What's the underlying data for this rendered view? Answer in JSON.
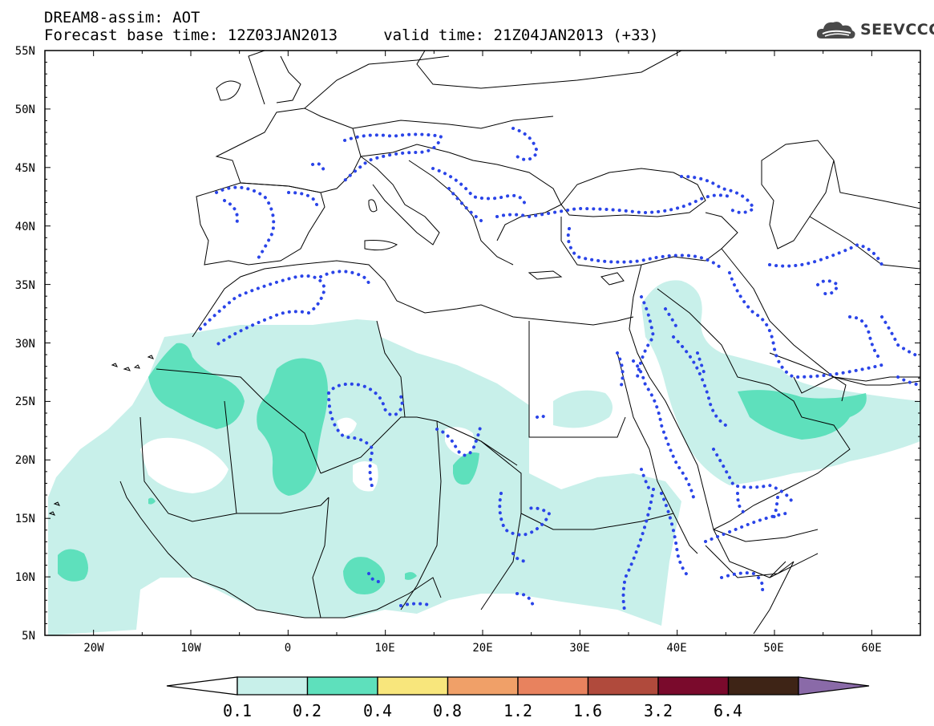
{
  "header": {
    "title_line1": "DREAM8-assim: AOT",
    "title_line2": "Forecast base time: 12Z03JAN2013     valid time: 21Z04JAN2013 (+33)"
  },
  "logo": {
    "icon": "cloud-icon",
    "text": "SEEVCCC"
  },
  "map": {
    "lon_range": [
      -25,
      65
    ],
    "lat_range": [
      5,
      55
    ],
    "lat_ticks": [
      "55N",
      "50N",
      "45N",
      "40N",
      "35N",
      "30N",
      "25N",
      "20N",
      "15N",
      "10N",
      "5N"
    ],
    "lon_ticks": [
      "20W",
      "10W",
      "0",
      "10E",
      "20E",
      "30E",
      "40E",
      "50E",
      "60E"
    ]
  },
  "colorbar": {
    "labels": [
      "0.1",
      "0.2",
      "0.4",
      "0.8",
      "1.2",
      "1.6",
      "3.2",
      "6.4"
    ],
    "colors": [
      "#ffffff",
      "#c8f0ea",
      "#5ee0bc",
      "#f8e67c",
      "#f0a068",
      "#e8825e",
      "#b04a3c",
      "#7a0a2c",
      "#3e2416",
      "#8a6aa8"
    ]
  },
  "colors": {
    "aot_low": "#c8f0ea",
    "aot_mid": "#5ee0bc",
    "contour": "#2a44e8",
    "border": "#000000"
  }
}
